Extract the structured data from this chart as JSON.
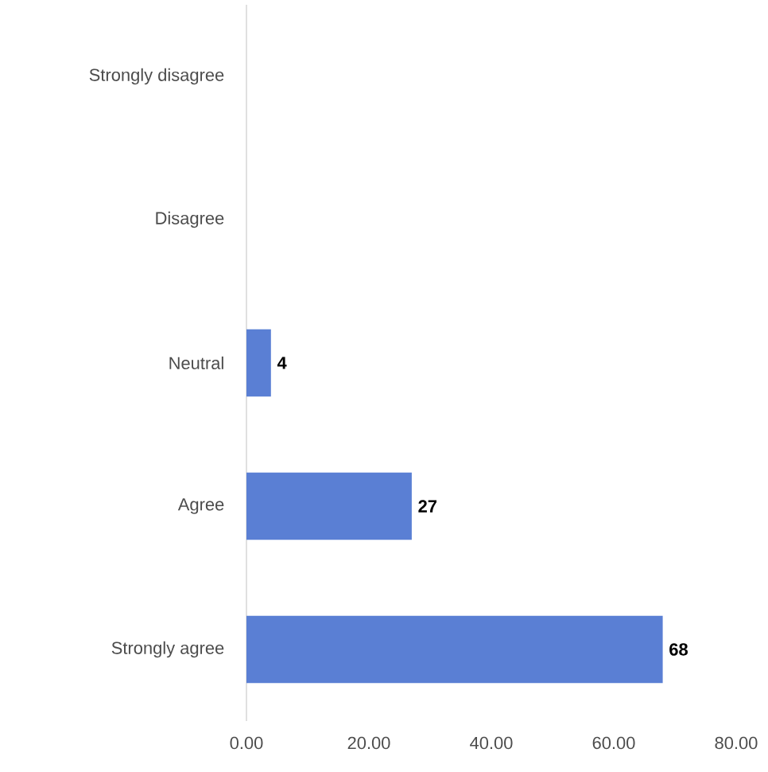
{
  "chart_data": {
    "type": "bar",
    "orientation": "horizontal",
    "categories": [
      "Strongly disagree",
      "Disagree",
      "Neutral",
      "Agree",
      "Strongly agree"
    ],
    "values": [
      0,
      0,
      4,
      27,
      68
    ],
    "value_labels": [
      null,
      null,
      "4",
      "27",
      "68"
    ],
    "color": "#5a7fd4",
    "xlim": [
      0,
      80
    ],
    "xticks": [
      {
        "value": 0,
        "label": "0.00"
      },
      {
        "value": 20,
        "label": "20.00"
      },
      {
        "value": 40,
        "label": "40.00"
      },
      {
        "value": 60,
        "label": "60.00"
      },
      {
        "value": 80,
        "label": "80.00"
      }
    ]
  }
}
